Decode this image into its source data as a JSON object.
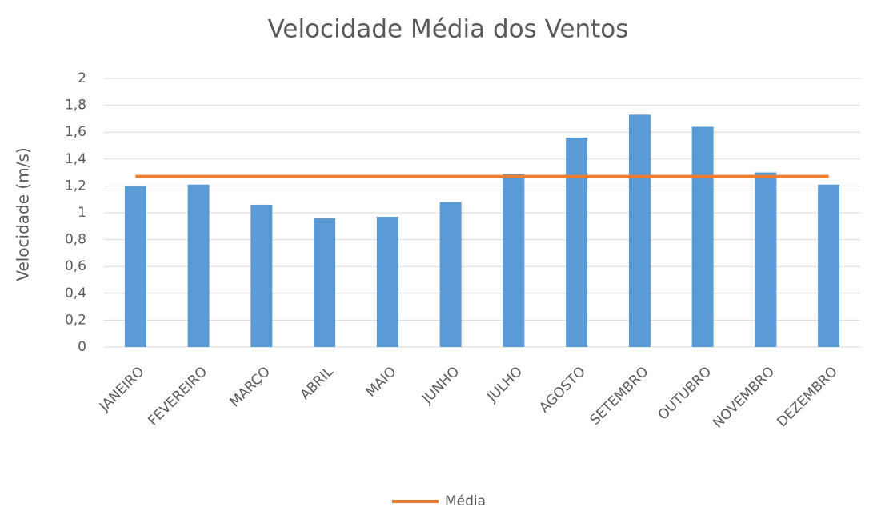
{
  "chart_data": {
    "type": "bar",
    "title": "Velocidade Média dos Ventos",
    "y_label": "Velocidade (m/s)",
    "categories": [
      "JANEIRO",
      "FEVEREIRO",
      "MARÇO",
      "ABRIL",
      "MAIO",
      "JUNHO",
      "JULHO",
      "AGOSTO",
      "SETEMBRO",
      "OUTUBRO",
      "NOVEMBRO",
      "DEZEMBRO"
    ],
    "series": [
      {
        "type": "bar",
        "color": "#5b9bd5",
        "values": [
          1.2,
          1.21,
          1.06,
          0.96,
          0.97,
          1.08,
          1.29,
          1.56,
          1.73,
          1.64,
          1.3,
          1.21
        ]
      },
      {
        "type": "line",
        "name": "Média",
        "color": "#ed7d31",
        "values": [
          1.27,
          1.27,
          1.27,
          1.27,
          1.27,
          1.27,
          1.27,
          1.27,
          1.27,
          1.27,
          1.27,
          1.27
        ]
      }
    ],
    "ylim": [
      0,
      2
    ],
    "yticks": [
      0,
      {
        "value": 0.2,
        "label": "0,2"
      },
      {
        "value": 0.4,
        "label": "0,4"
      },
      {
        "value": 0.6,
        "label": "0,6"
      },
      {
        "value": 0.8,
        "label": "0,8"
      },
      1,
      {
        "value": 1.2,
        "label": "1,2"
      },
      {
        "value": 1.4,
        "label": "1,4"
      },
      {
        "value": 1.6,
        "label": "1,6"
      },
      {
        "value": 1.8,
        "label": "1,8"
      },
      2
    ],
    "grid": true,
    "legend": "bottom"
  }
}
